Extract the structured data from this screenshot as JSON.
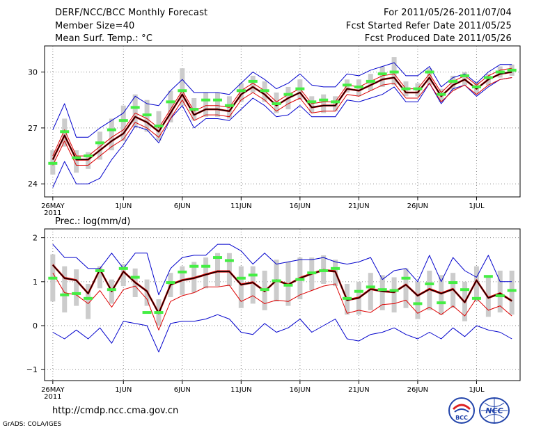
{
  "header": {
    "left": [
      "DERF/NCC/BCC Monthly Forecast",
      "Member Size=40",
      "Mean Surf. Temp.: °C"
    ],
    "right": [
      "For 2011/05/26-2011/07/04",
      "Fcst Started Refer Date 2011/05/25",
      "Fcst Produced Date 2011/05/26"
    ]
  },
  "footer": {
    "url": "http://cmdp.ncc.cma.gov.cn",
    "credit": "GrADS: COLA/IGES",
    "logo1": "BCC",
    "logo2": "NCC"
  },
  "colors": {
    "envelope": "#0000cc",
    "lower_band": "#dd0000",
    "mean": "#000000",
    "mean_halo": "#cc0000",
    "median": "#44ee44",
    "spread": "#cccccc",
    "grid": "#888888"
  },
  "chart_data": [
    {
      "type": "line",
      "title": "Mean Surf. Temp.: °C",
      "ylabel": "Mean Surf. Temp.: °C",
      "ylim": [
        23.3,
        31.4
      ],
      "yticks": [
        24,
        27,
        30
      ],
      "ytick_labels": [
        "24",
        "27",
        "30"
      ],
      "xlim": [
        -0.7,
        39.7
      ],
      "xticks": [
        0,
        6,
        11,
        16,
        21,
        26,
        31,
        36
      ],
      "xtick_labels": [
        "26MAY",
        "1JUN",
        "6JUN",
        "11JUN",
        "16JUN",
        "21JUN",
        "26JUN",
        "1JUL"
      ],
      "xtick_sublabel": "2011",
      "grid": true,
      "series": [
        {
          "name": "max",
          "values": [
            26.9,
            28.3,
            26.5,
            26.5,
            27.0,
            27.4,
            27.8,
            28.7,
            28.3,
            28.2,
            29.0,
            29.6,
            28.9,
            28.9,
            28.9,
            28.8,
            29.4,
            30.0,
            29.6,
            29.1,
            29.4,
            29.9,
            29.3,
            29.2,
            29.2,
            29.9,
            29.8,
            30.1,
            30.3,
            30.5,
            29.8,
            29.8,
            30.3,
            29.2,
            29.7,
            29.9,
            29.4,
            30.0,
            30.4,
            30.4
          ]
        },
        {
          "name": "upper",
          "values": [
            25.5,
            26.9,
            25.5,
            25.5,
            26.0,
            26.5,
            26.9,
            27.8,
            27.5,
            27.0,
            28.0,
            29.0,
            27.9,
            28.2,
            28.2,
            28.1,
            29.0,
            29.4,
            29.0,
            28.4,
            28.8,
            29.1,
            28.3,
            28.4,
            28.4,
            29.3,
            29.2,
            29.5,
            29.8,
            29.9,
            29.1,
            29.1,
            29.9,
            28.9,
            29.5,
            29.8,
            29.3,
            29.8,
            30.1,
            30.2
          ]
        },
        {
          "name": "mean",
          "values": [
            25.3,
            26.6,
            25.3,
            25.3,
            25.8,
            26.3,
            26.7,
            27.6,
            27.3,
            26.8,
            27.8,
            28.8,
            27.7,
            28.0,
            28.0,
            27.9,
            28.8,
            29.2,
            28.8,
            28.2,
            28.6,
            28.9,
            28.1,
            28.2,
            28.2,
            29.1,
            29.0,
            29.3,
            29.6,
            29.7,
            28.9,
            28.9,
            29.7,
            28.7,
            29.3,
            29.6,
            29.1,
            29.6,
            29.9,
            30.0
          ]
        },
        {
          "name": "lower",
          "values": [
            25.0,
            26.3,
            25.0,
            25.0,
            25.5,
            26.0,
            26.4,
            27.3,
            27.0,
            26.5,
            27.5,
            28.5,
            27.4,
            27.7,
            27.7,
            27.6,
            28.5,
            28.9,
            28.5,
            27.9,
            28.3,
            28.6,
            27.8,
            27.9,
            27.9,
            28.8,
            28.7,
            29.0,
            29.3,
            29.4,
            28.6,
            28.6,
            29.4,
            28.4,
            29.0,
            29.3,
            28.8,
            29.3,
            29.6,
            29.7
          ]
        },
        {
          "name": "min",
          "values": [
            23.8,
            25.2,
            24.0,
            24.0,
            24.3,
            25.3,
            26.1,
            27.1,
            26.9,
            26.2,
            27.5,
            28.2,
            27.0,
            27.5,
            27.5,
            27.4,
            28.0,
            28.6,
            28.2,
            27.6,
            27.7,
            28.2,
            27.6,
            27.6,
            27.6,
            28.5,
            28.4,
            28.6,
            28.8,
            29.2,
            28.4,
            28.4,
            29.4,
            28.3,
            29.1,
            29.3,
            28.7,
            29.2,
            29.6,
            29.7
          ]
        },
        {
          "name": "median",
          "values": [
            25.1,
            26.8,
            25.4,
            25.5,
            26.2,
            26.9,
            27.4,
            28.1,
            27.7,
            27.1,
            28.4,
            29.0,
            28.0,
            28.5,
            28.5,
            28.2,
            29.0,
            29.5,
            29.0,
            28.3,
            28.8,
            29.1,
            28.4,
            28.5,
            28.4,
            29.3,
            29.2,
            29.5,
            29.9,
            30.0,
            29.1,
            29.1,
            30.0,
            28.8,
            29.5,
            29.8,
            29.2,
            29.7,
            30.0,
            30.1
          ]
        },
        {
          "name": "spread_high",
          "values": [
            25.8,
            27.5,
            25.8,
            25.7,
            26.8,
            27.5,
            28.2,
            28.8,
            28.5,
            27.9,
            29.0,
            30.2,
            28.6,
            28.9,
            28.9,
            28.7,
            29.4,
            29.8,
            29.5,
            28.9,
            29.2,
            29.6,
            28.7,
            28.8,
            28.7,
            29.6,
            29.6,
            29.9,
            30.3,
            30.8,
            29.5,
            29.4,
            30.2,
            29.1,
            29.8,
            30.0,
            29.5,
            29.9,
            30.3,
            30.4
          ]
        },
        {
          "name": "spread_low",
          "values": [
            24.5,
            26.0,
            24.6,
            24.8,
            25.3,
            25.8,
            26.3,
            27.0,
            26.8,
            26.3,
            27.3,
            28.2,
            27.4,
            27.6,
            27.6,
            27.5,
            28.4,
            28.9,
            28.4,
            27.8,
            28.0,
            28.5,
            27.8,
            27.8,
            27.9,
            28.9,
            28.7,
            29.0,
            29.2,
            29.3,
            28.7,
            28.7,
            29.3,
            28.4,
            29.0,
            29.3,
            28.8,
            29.3,
            29.7,
            29.8
          ]
        }
      ]
    },
    {
      "type": "line",
      "title": "Prec.: log(mm/d)",
      "ylabel": "Prec.: log(mm/d)",
      "ylim": [
        -1.25,
        2.2
      ],
      "yticks": [
        -1,
        0,
        1,
        2
      ],
      "ytick_labels": [
        "−1",
        "0",
        "1",
        "2"
      ],
      "xlim": [
        -0.7,
        39.7
      ],
      "xticks": [
        0,
        6,
        11,
        16,
        21,
        26,
        31,
        36
      ],
      "xtick_labels": [
        "26MAY",
        "1JUN",
        "6JUN",
        "11JUN",
        "16JUN",
        "21JUN",
        "26JUN",
        "1JUL"
      ],
      "xtick_sublabel": "2011",
      "grid": true,
      "series": [
        {
          "name": "max",
          "values": [
            1.85,
            1.55,
            1.55,
            1.3,
            1.3,
            1.65,
            1.3,
            1.65,
            1.65,
            0.7,
            1.3,
            1.55,
            1.6,
            1.6,
            1.85,
            1.85,
            1.7,
            1.4,
            1.65,
            1.4,
            1.45,
            1.5,
            1.5,
            1.55,
            1.45,
            1.4,
            1.45,
            1.55,
            1.05,
            1.25,
            1.3,
            1.0,
            1.6,
            1.0,
            1.55,
            1.25,
            1.1,
            1.6,
            1.0,
            1.0
          ]
        },
        {
          "name": "upper",
          "values": [
            1.4,
            1.1,
            1.05,
            0.75,
            1.3,
            0.8,
            1.25,
            1.0,
            0.8,
            0.3,
            0.95,
            1.05,
            1.1,
            1.18,
            1.25,
            1.25,
            0.95,
            1.0,
            0.8,
            1.05,
            0.95,
            1.1,
            1.2,
            1.28,
            1.25,
            0.6,
            0.65,
            0.85,
            0.8,
            0.78,
            0.95,
            0.7,
            0.85,
            0.75,
            0.85,
            0.55,
            1.05,
            0.65,
            0.75,
            0.58
          ]
        },
        {
          "name": "mean",
          "values": [
            1.38,
            1.08,
            1.03,
            0.73,
            1.28,
            0.78,
            1.23,
            0.98,
            0.78,
            0.28,
            0.93,
            1.03,
            1.08,
            1.16,
            1.23,
            1.23,
            0.93,
            0.98,
            0.78,
            1.03,
            0.93,
            1.08,
            1.18,
            1.26,
            1.23,
            0.58,
            0.63,
            0.83,
            0.78,
            0.76,
            0.93,
            0.68,
            0.83,
            0.73,
            0.83,
            0.53,
            1.03,
            0.63,
            0.73,
            0.56
          ]
        },
        {
          "name": "lower",
          "values": [
            1.2,
            0.75,
            0.7,
            0.5,
            0.8,
            0.42,
            0.82,
            0.9,
            0.6,
            -0.1,
            0.55,
            0.68,
            0.75,
            0.88,
            0.88,
            0.92,
            0.55,
            0.68,
            0.5,
            0.58,
            0.55,
            0.7,
            0.8,
            0.9,
            0.95,
            0.28,
            0.35,
            0.3,
            0.48,
            0.5,
            0.58,
            0.28,
            0.42,
            0.25,
            0.45,
            0.22,
            0.62,
            0.35,
            0.45,
            0.22
          ]
        },
        {
          "name": "min",
          "values": [
            -0.15,
            -0.3,
            -0.1,
            -0.3,
            -0.05,
            -0.4,
            0.1,
            0.05,
            0.0,
            -0.6,
            0.05,
            0.1,
            0.1,
            0.15,
            0.25,
            0.15,
            -0.15,
            -0.2,
            0.05,
            -0.15,
            -0.05,
            0.15,
            -0.15,
            0.0,
            0.15,
            -0.3,
            -0.35,
            -0.2,
            -0.15,
            -0.05,
            -0.2,
            -0.3,
            -0.15,
            -0.3,
            -0.05,
            -0.25,
            0.0,
            -0.1,
            -0.15,
            -0.3
          ]
        },
        {
          "name": "median",
          "values": [
            1.08,
            0.7,
            0.73,
            0.62,
            1.25,
            0.82,
            1.3,
            1.1,
            0.3,
            0.3,
            0.98,
            1.22,
            1.35,
            1.35,
            1.55,
            1.48,
            1.08,
            1.15,
            0.82,
            1.02,
            0.92,
            1.05,
            1.2,
            1.25,
            1.3,
            0.62,
            0.78,
            0.88,
            0.82,
            0.8,
            1.08,
            0.5,
            0.95,
            0.52,
            0.98,
            0.82,
            0.62,
            1.12,
            0.68,
            0.8
          ]
        },
        {
          "name": "spread_high",
          "values": [
            1.62,
            1.35,
            1.28,
            0.95,
            1.35,
            1.05,
            1.4,
            1.3,
            1.05,
            0.6,
            1.2,
            1.35,
            1.45,
            1.55,
            1.65,
            1.65,
            1.35,
            1.35,
            1.25,
            1.5,
            1.45,
            1.55,
            1.55,
            1.6,
            1.5,
            0.95,
            1.0,
            1.2,
            1.15,
            1.1,
            1.3,
            1.0,
            1.25,
            1.15,
            1.2,
            1.0,
            1.35,
            1.1,
            1.25,
            1.25
          ]
        },
        {
          "name": "spread_low",
          "values": [
            0.55,
            0.3,
            0.45,
            0.15,
            0.85,
            0.5,
            0.9,
            0.65,
            0.45,
            0.0,
            0.65,
            0.7,
            0.75,
            0.85,
            0.9,
            0.9,
            0.4,
            0.5,
            0.35,
            0.55,
            0.45,
            0.6,
            0.8,
            0.95,
            0.9,
            0.25,
            0.25,
            0.35,
            0.35,
            0.3,
            0.4,
            0.15,
            0.35,
            0.25,
            0.4,
            0.1,
            0.55,
            0.2,
            0.3,
            0.25
          ]
        }
      ]
    }
  ]
}
